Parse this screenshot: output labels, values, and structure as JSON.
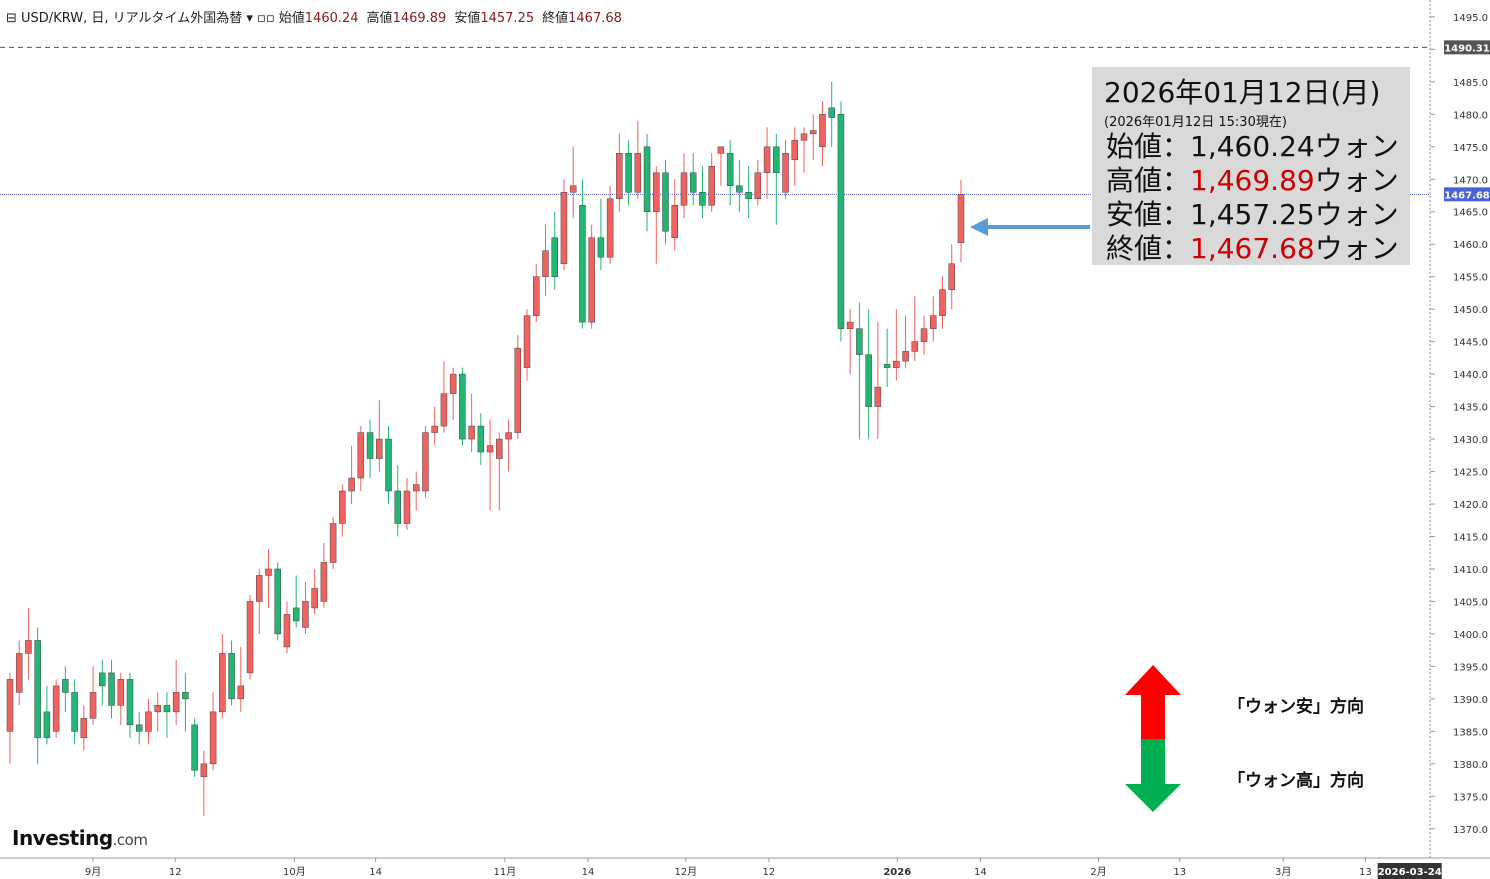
{
  "chart_data": {
    "type": "candlestick",
    "header": {
      "title": "USD/KRW, 日, リアルタイム外国為替",
      "items": [
        {
          "label": "始値",
          "value": 1460.24
        },
        {
          "label": "高値",
          "value": 1469.89
        },
        {
          "label": "安値",
          "value": 1457.25
        },
        {
          "label": "終値",
          "value": 1467.68
        }
      ]
    },
    "up_color": "#f0625f",
    "down_color": "#22b573",
    "open": [
      1385,
      1391,
      1397,
      1399,
      1388,
      1385,
      1393,
      1391,
      1384,
      1387,
      1394,
      1394,
      1389,
      1393,
      1386,
      1385,
      1388,
      1389,
      1388,
      1391,
      1386,
      1378,
      1380,
      1388,
      1397,
      1390,
      1394,
      1405,
      1409,
      1410,
      1398,
      1404,
      1401,
      1404,
      1405,
      1411,
      1417,
      1422,
      1424,
      1431,
      1427,
      1430,
      1422,
      1417,
      1422,
      1422,
      1431,
      1432,
      1437,
      1440,
      1430,
      1432,
      1428,
      1427,
      1430,
      1431,
      1441,
      1449,
      1455,
      1461,
      1457,
      1468,
      1466,
      1448,
      1461,
      1458,
      1467,
      1474,
      1468,
      1475,
      1465,
      1471,
      1461,
      1466,
      1471,
      1468,
      1466,
      1474,
      1474,
      1469,
      1468,
      1467,
      1471,
      1475,
      1468,
      1473,
      1476,
      1477,
      1475,
      1481,
      1480,
      1447,
      1447,
      1443,
      1435,
      1441.5,
      1441,
      1442,
      1443.5,
      1445,
      1447,
      1449,
      1453,
      1460.24
    ],
    "high": [
      1394,
      1399,
      1404,
      1401,
      1392,
      1393,
      1395,
      1393,
      1389,
      1395,
      1396,
      1396,
      1394,
      1394,
      1388,
      1390,
      1391,
      1391,
      1396,
      1394,
      1387,
      1382,
      1391,
      1400,
      1399,
      1398,
      1406,
      1410,
      1413,
      1411,
      1405,
      1409,
      1408,
      1410,
      1414,
      1418,
      1423,
      1429,
      1432,
      1433,
      1436,
      1432,
      1426,
      1424,
      1425,
      1432,
      1435,
      1442,
      1441,
      1441,
      1437,
      1434,
      1433,
      1431,
      1433,
      1446,
      1450,
      1457,
      1463,
      1465,
      1470,
      1475,
      1470,
      1463,
      1467,
      1469,
      1477,
      1476,
      1479,
      1477,
      1472,
      1473,
      1470,
      1474,
      1474,
      1472,
      1474,
      1475,
      1476,
      1473,
      1472,
      1473,
      1478,
      1477,
      1476,
      1478,
      1478,
      1480,
      1482,
      1485,
      1482,
      1450,
      1451,
      1450,
      1448,
      1447,
      1450,
      1449,
      1452,
      1449,
      1452,
      1455,
      1460,
      1469.89
    ],
    "low": [
      1380,
      1389,
      1393,
      1380,
      1383,
      1384,
      1388,
      1383,
      1382,
      1386,
      1389,
      1387,
      1386,
      1384,
      1383,
      1383,
      1385,
      1384,
      1386,
      1385,
      1378,
      1372,
      1379,
      1387,
      1389,
      1388,
      1393,
      1400,
      1404,
      1399,
      1397,
      1401,
      1400,
      1403,
      1404,
      1410,
      1415,
      1420,
      1422,
      1424,
      1425,
      1420,
      1415,
      1416,
      1419,
      1421,
      1429,
      1431,
      1433,
      1429,
      1428,
      1426,
      1419,
      1419,
      1425,
      1430,
      1439,
      1448,
      1452,
      1453,
      1456,
      1464,
      1447,
      1447,
      1456,
      1457,
      1465,
      1466,
      1467,
      1462,
      1457,
      1460,
      1459,
      1464,
      1466,
      1464,
      1465,
      1469,
      1466,
      1465,
      1464,
      1466,
      1467,
      1463,
      1467,
      1469,
      1471,
      1473,
      1472,
      1475,
      1445,
      1440,
      1430,
      1430,
      1430,
      1438,
      1439,
      1441,
      1442,
      1443,
      1445,
      1447,
      1450,
      1457.25
    ],
    "close": [
      1393,
      1397,
      1399,
      1384,
      1384,
      1392,
      1391,
      1385,
      1387,
      1391,
      1392,
      1389,
      1393,
      1386,
      1385,
      1388,
      1389,
      1388,
      1391,
      1390,
      1379,
      1380,
      1388,
      1397,
      1390,
      1392,
      1405,
      1409,
      1410,
      1400,
      1403,
      1402,
      1405,
      1407,
      1411,
      1417,
      1422,
      1424,
      1431,
      1427,
      1430,
      1422,
      1417,
      1422,
      1423,
      1431,
      1432,
      1437,
      1440,
      1430,
      1432,
      1428,
      1429,
      1430,
      1431,
      1444,
      1449,
      1455,
      1459,
      1455,
      1468,
      1469,
      1448,
      1461,
      1458,
      1467,
      1474,
      1468,
      1474,
      1465,
      1471,
      1462,
      1466,
      1471,
      1468,
      1466,
      1472,
      1475,
      1469,
      1468,
      1467,
      1471,
      1475,
      1471,
      1474,
      1476,
      1477,
      1477.5,
      1480,
      1479.5,
      1447,
      1448,
      1443,
      1435,
      1438,
      1441,
      1442,
      1443.5,
      1445,
      1447,
      1449,
      1453,
      1457,
      1467.68
    ],
    "xlim": [
      -1.08,
      153.8
    ],
    "xticks": [
      {
        "value": 9.0,
        "label": "9月"
      },
      {
        "value": 17.9,
        "label": "12"
      },
      {
        "value": 30.8,
        "label": "10月"
      },
      {
        "value": 39.6,
        "label": "14"
      },
      {
        "value": 53.6,
        "label": "11月"
      },
      {
        "value": 62.6,
        "label": "14"
      },
      {
        "value": 73.2,
        "label": "12月"
      },
      {
        "value": 82.2,
        "label": "12"
      },
      {
        "value": 96.1,
        "label": "2026"
      },
      {
        "value": 105.1,
        "label": "14"
      },
      {
        "value": 117.9,
        "label": "2月"
      },
      {
        "value": 126.7,
        "label": "13"
      },
      {
        "value": 137.9,
        "label": "3月"
      },
      {
        "value": 146.8,
        "label": "13"
      }
    ],
    "x_marker": {
      "value": 151.6,
      "label": "2026-03-24"
    },
    "ylim": [
      1365.5,
      1497.6
    ],
    "yticks": [
      {
        "value": 1370,
        "label": "1370.0"
      },
      {
        "value": 1375,
        "label": "1375.0"
      },
      {
        "value": 1380,
        "label": "1380.0"
      },
      {
        "value": 1385,
        "label": "1385.0"
      },
      {
        "value": 1390,
        "label": "1390.0"
      },
      {
        "value": 1395,
        "label": "1395.0"
      },
      {
        "value": 1400,
        "label": "1400.0"
      },
      {
        "value": 1405,
        "label": "1405.0"
      },
      {
        "value": 1410,
        "label": "1410.0"
      },
      {
        "value": 1415,
        "label": "1415.0"
      },
      {
        "value": 1420,
        "label": "1420.0"
      },
      {
        "value": 1425,
        "label": "1425.0"
      },
      {
        "value": 1430,
        "label": "1430.0"
      },
      {
        "value": 1435,
        "label": "1435.0"
      },
      {
        "value": 1440,
        "label": "1440.0"
      },
      {
        "value": 1445,
        "label": "1445.0"
      },
      {
        "value": 1450,
        "label": "1450.0"
      },
      {
        "value": 1455,
        "label": "1455.0"
      },
      {
        "value": 1460,
        "label": "1460.0"
      },
      {
        "value": 1465,
        "label": "1465.0"
      },
      {
        "value": 1470,
        "label": "1470.0"
      },
      {
        "value": 1475,
        "label": "1475.0"
      },
      {
        "value": 1480,
        "label": "1480.0"
      },
      {
        "value": 1485,
        "label": "1485.0"
      },
      {
        "value": 1490,
        "label": "1490.0"
      },
      {
        "value": 1495,
        "label": "1495.0"
      }
    ],
    "price_lines": [
      {
        "value": 1490.31,
        "color": "#555",
        "style": "dashed"
      },
      {
        "value": 1467.68,
        "color": "#4a62d8",
        "style": "dotted"
      }
    ],
    "annotation": {
      "date": "2026年01月12日(月)",
      "sub": "(2026年01月12日 15:30現在)",
      "rows": [
        {
          "label": "始値：",
          "value": "1,460.24",
          "unit": "ウォン",
          "color": "#111"
        },
        {
          "label": "高値：",
          "value": "1,469.89",
          "unit": "ウォン",
          "color": "#cc0000"
        },
        {
          "label": "安値：",
          "value": "1,457.25",
          "unit": "ウォン",
          "color": "#111"
        },
        {
          "label": "終値：",
          "value": "1,467.68",
          "unit": "ウォン",
          "color": "#cc0000"
        }
      ]
    },
    "legend": {
      "up": "「ウォン安」方向",
      "down": "「ウォン高」方向"
    },
    "logo": {
      "name": "Investing",
      "suffix": ".com"
    }
  }
}
